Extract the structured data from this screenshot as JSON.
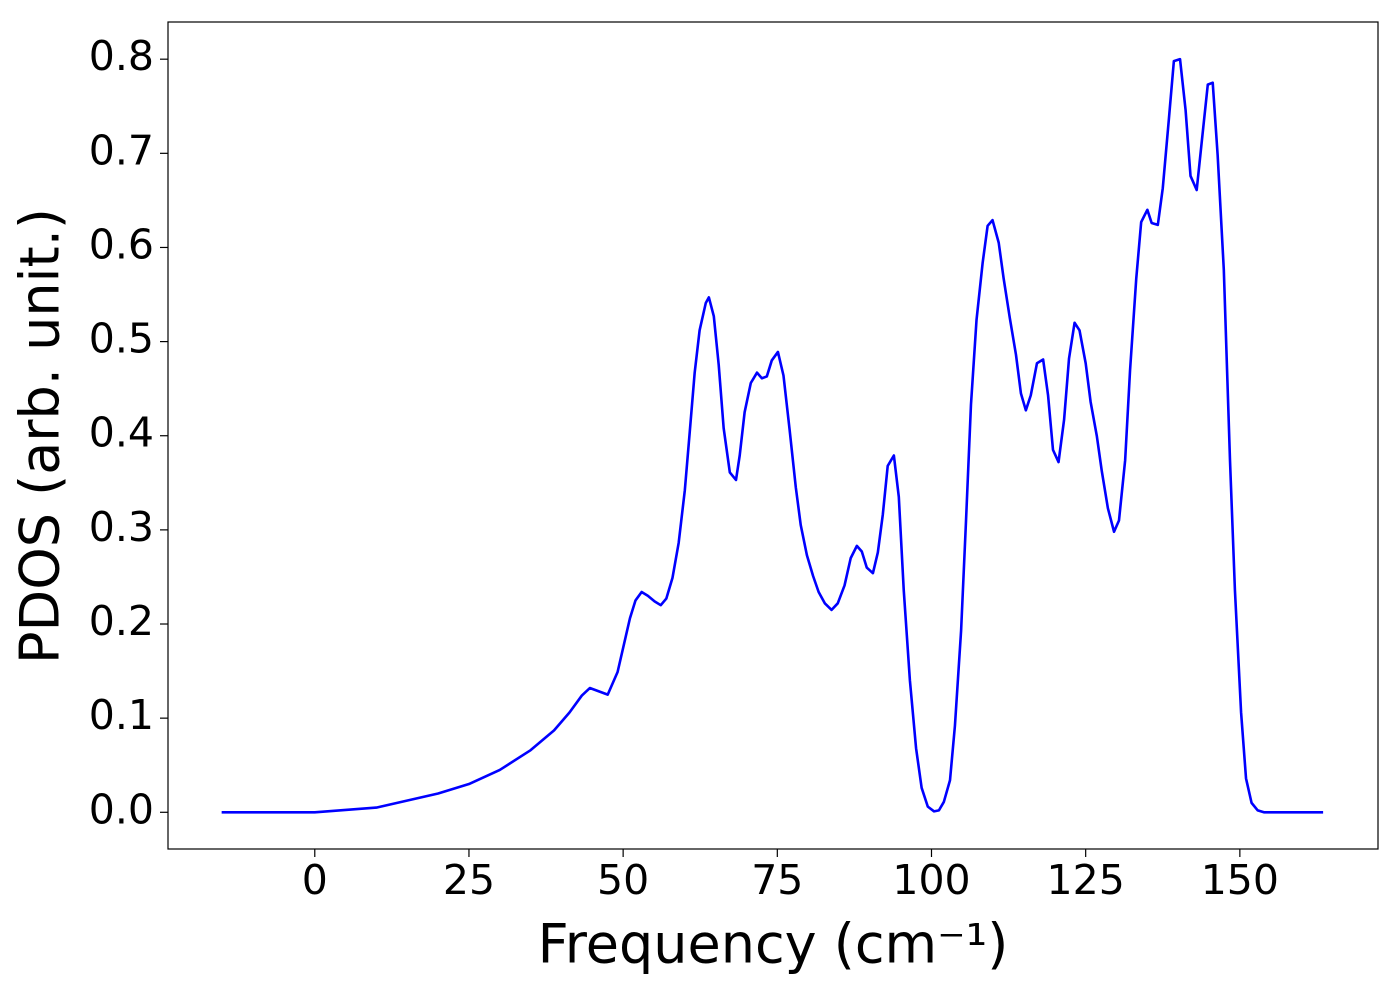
{
  "chart_data": {
    "type": "line",
    "xlabel": "Frequency (cm⁻¹)",
    "ylabel": "PDOS (arb. unit.)",
    "xlim": [
      -23.8,
      172.4
    ],
    "ylim": [
      -0.039,
      0.8395
    ],
    "xticks": [
      0,
      25,
      50,
      75,
      100,
      125,
      150
    ],
    "yticks": [
      {
        "value": 0,
        "label": "0.0"
      },
      0.1,
      0.2,
      0.3,
      0.4,
      0.5,
      0.6,
      0.7,
      0.8
    ],
    "grid": false,
    "x": [
      -15.1,
      0,
      10,
      20,
      25,
      30,
      35,
      38.8,
      41.3,
      43.3,
      44.6,
      47.5,
      49.1,
      51.1,
      52,
      53,
      54,
      55.1,
      56.1,
      57,
      58,
      59,
      60,
      60.8,
      61.6,
      62.4,
      63.4,
      63.9,
      64.7,
      65.5,
      66.3,
      67.3,
      68.3,
      68.9,
      69.7,
      70.7,
      71.7,
      72.5,
      73.3,
      74.1,
      75.1,
      76,
      77,
      78,
      78.8,
      79.8,
      80.8,
      81.7,
      82.7,
      83.8,
      84.8,
      85.9,
      86.9,
      87.9,
      88.7,
      89.5,
      90.5,
      91.3,
      92.1,
      92.9,
      93.9,
      94.7,
      95.5,
      96.5,
      97.5,
      98.4,
      99.4,
      100.4,
      101.2,
      102,
      103,
      103.8,
      104.8,
      105.6,
      106.4,
      107.3,
      108.3,
      109.1,
      109.9,
      110.9,
      111.7,
      112.7,
      113.7,
      114.5,
      115.3,
      116.1,
      117.1,
      118.1,
      118.9,
      119.7,
      120.6,
      121.5,
      122.3,
      123.2,
      124,
      125,
      125.8,
      126.8,
      127.6,
      128.6,
      129.6,
      130.4,
      131.4,
      132.2,
      133.2,
      134,
      135,
      135.7,
      136.7,
      137.5,
      138.5,
      139.3,
      140.3,
      141.2,
      142,
      143,
      143.8,
      144.8,
      145.6,
      146.4,
      147.4,
      148.4,
      149.2,
      150.2,
      151,
      151.9,
      152.9,
      153.9,
      163.5
    ],
    "series": [
      {
        "name": "PDOS",
        "color": "#0000ff",
        "values": [
          0,
          0,
          0.005,
          0.02,
          0.03,
          0.045,
          0.066,
          0.087,
          0.106,
          0.124,
          0.132,
          0.125,
          0.149,
          0.206,
          0.225,
          0.234,
          0.23,
          0.224,
          0.22,
          0.227,
          0.249,
          0.286,
          0.342,
          0.404,
          0.467,
          0.512,
          0.541,
          0.547,
          0.527,
          0.475,
          0.408,
          0.361,
          0.353,
          0.379,
          0.425,
          0.456,
          0.467,
          0.461,
          0.463,
          0.48,
          0.489,
          0.464,
          0.406,
          0.345,
          0.305,
          0.273,
          0.251,
          0.234,
          0.222,
          0.215,
          0.222,
          0.241,
          0.27,
          0.283,
          0.277,
          0.26,
          0.254,
          0.276,
          0.316,
          0.368,
          0.379,
          0.335,
          0.236,
          0.14,
          0.068,
          0.026,
          0.006,
          0.001,
          0.002,
          0.011,
          0.034,
          0.092,
          0.193,
          0.31,
          0.433,
          0.523,
          0.584,
          0.623,
          0.629,
          0.605,
          0.567,
          0.525,
          0.486,
          0.445,
          0.427,
          0.443,
          0.477,
          0.481,
          0.443,
          0.385,
          0.372,
          0.417,
          0.482,
          0.52,
          0.512,
          0.477,
          0.436,
          0.4,
          0.363,
          0.323,
          0.298,
          0.31,
          0.374,
          0.47,
          0.567,
          0.627,
          0.64,
          0.626,
          0.624,
          0.663,
          0.737,
          0.798,
          0.8,
          0.746,
          0.676,
          0.661,
          0.711,
          0.773,
          0.775,
          0.698,
          0.576,
          0.374,
          0.236,
          0.106,
          0.036,
          0.01,
          0.002,
          0,
          0
        ]
      }
    ]
  }
}
